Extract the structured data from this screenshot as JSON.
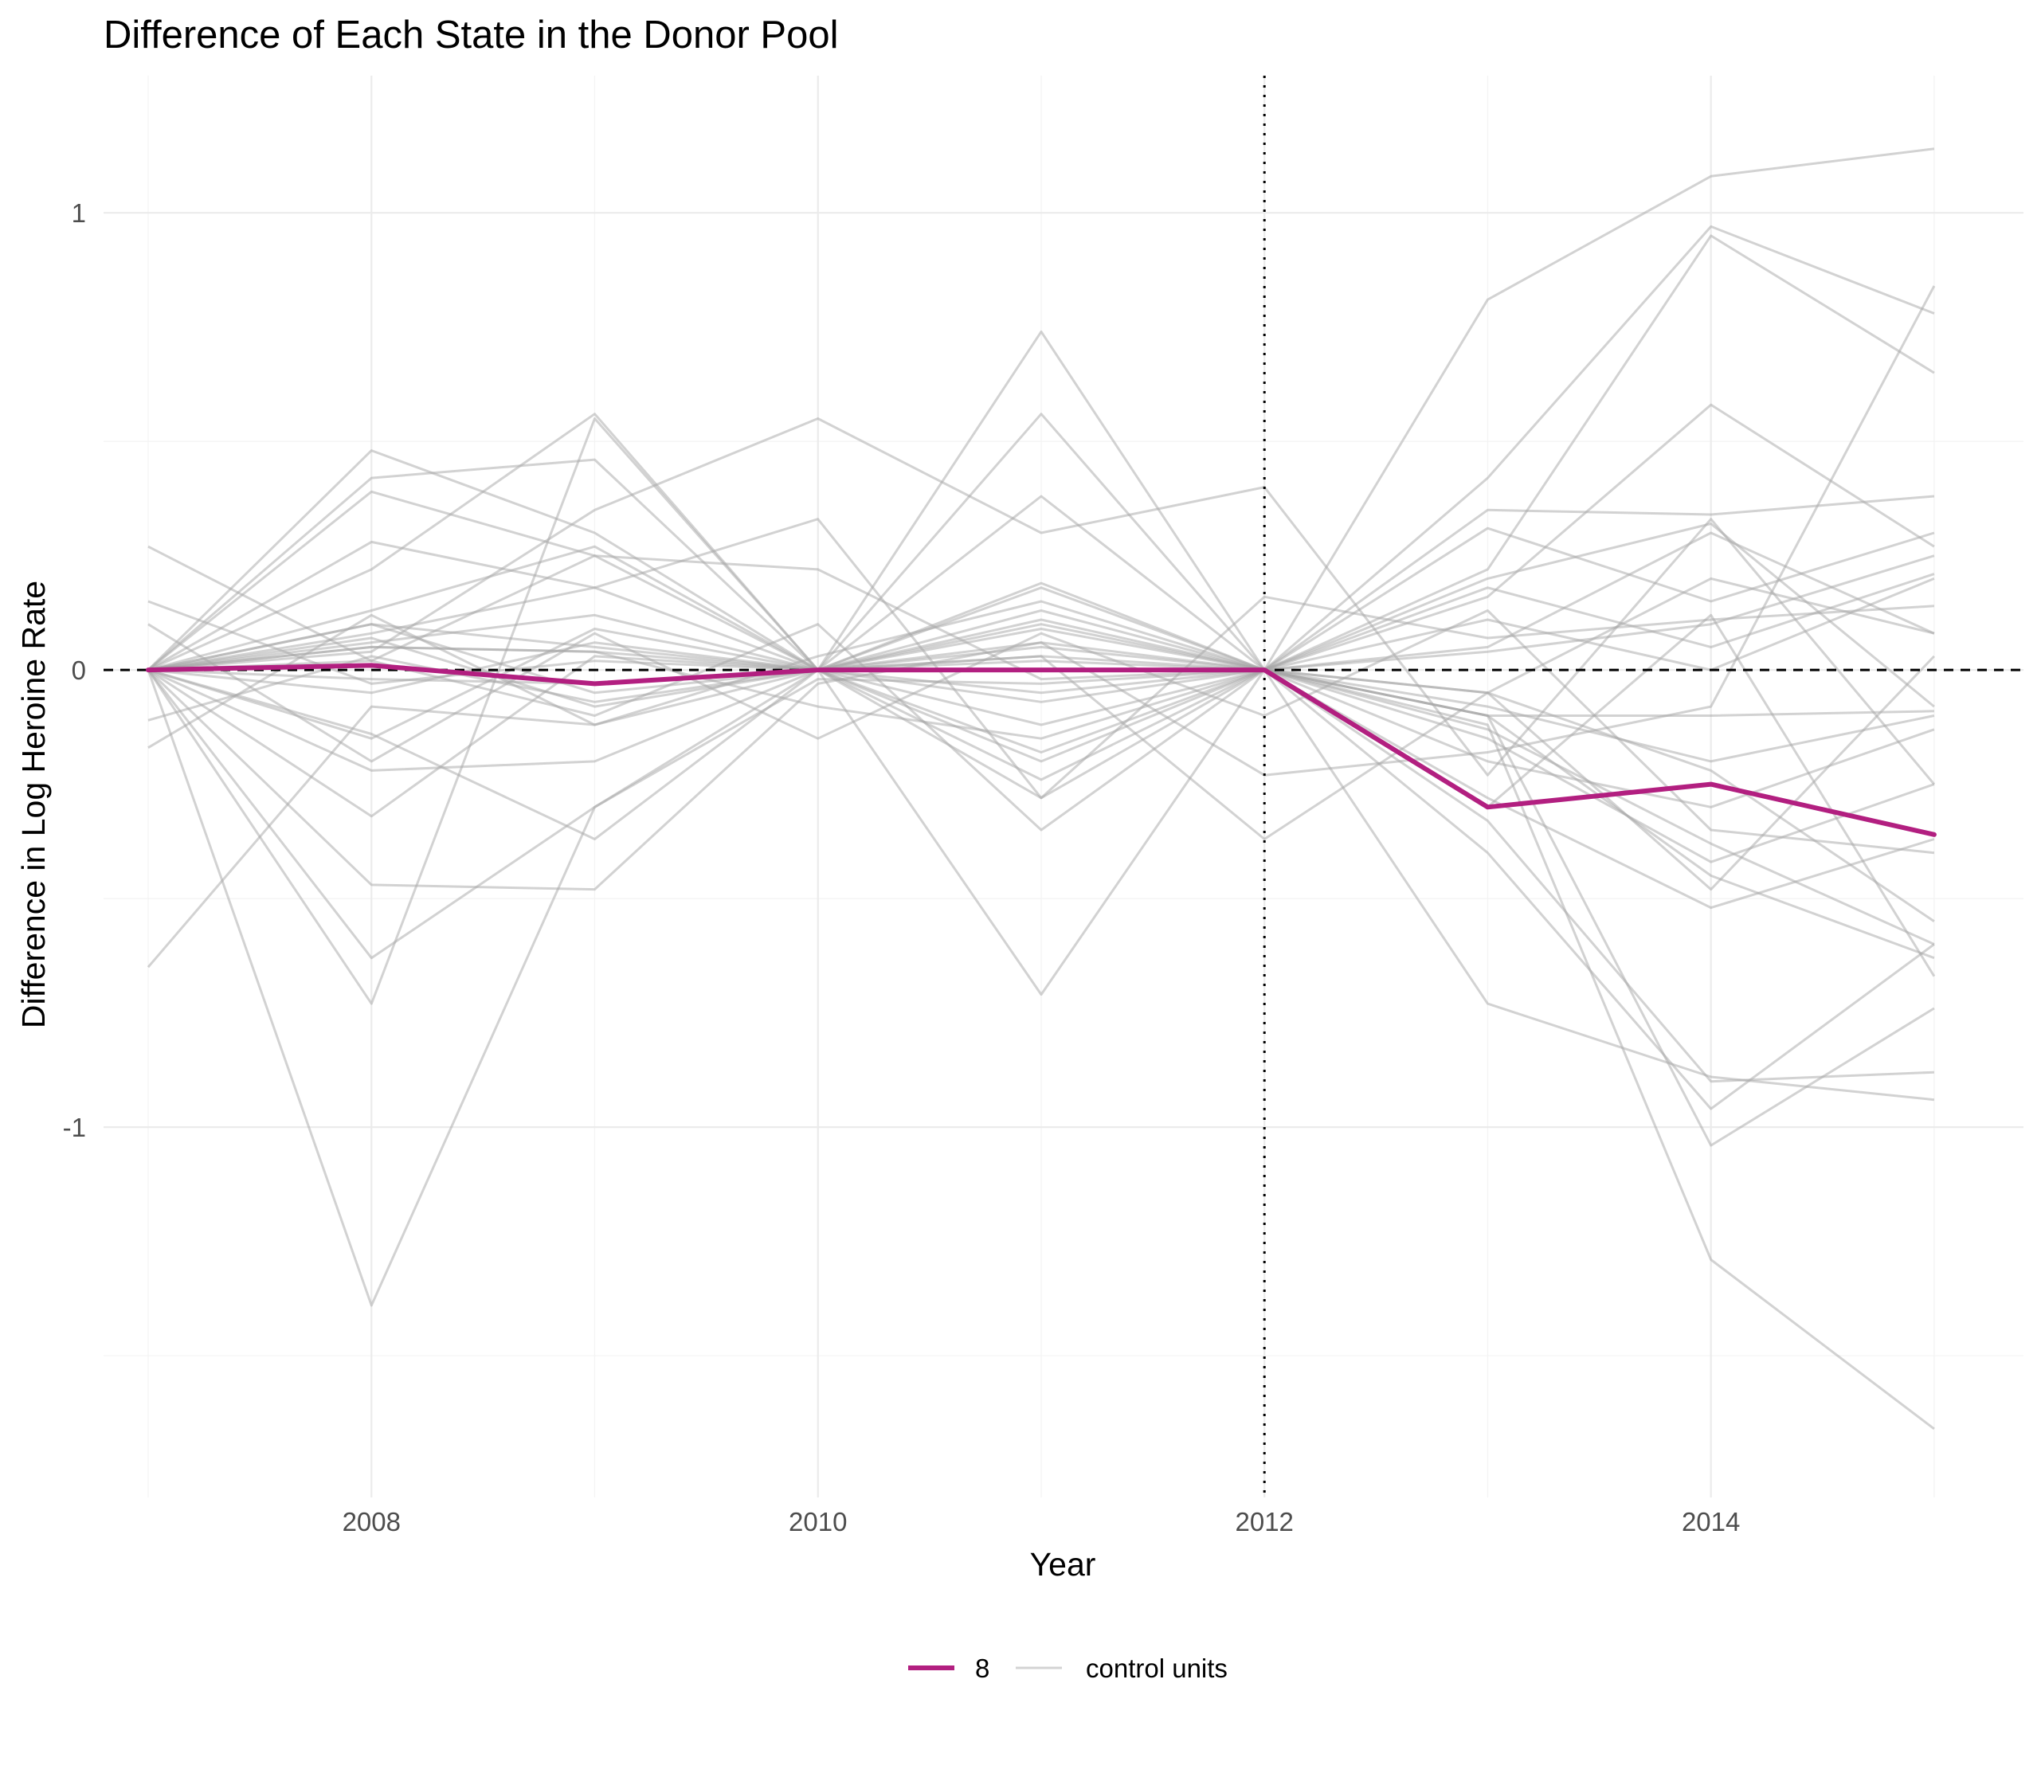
{
  "chart_data": {
    "type": "line",
    "title": "Difference of Each State in the Donor Pool",
    "xlabel": "Year",
    "ylabel": "Difference in Log Heroine Rate",
    "x": [
      2007,
      2008,
      2009,
      2010,
      2011,
      2012,
      2013,
      2014,
      2015
    ],
    "xlim": [
      2006.8,
      2015.4
    ],
    "ylim": [
      -1.81,
      1.3
    ],
    "x_ticks": [
      "2008",
      "2010",
      "2012",
      "2014"
    ],
    "x_tick_values": [
      2008,
      2010,
      2012,
      2014
    ],
    "y_ticks": [
      "-1",
      "0",
      "1"
    ],
    "y_tick_values": [
      -1,
      0,
      1
    ],
    "grid": true,
    "legend_position": "bottom",
    "reference_lines": {
      "horizontal_dashed_y": 0,
      "vertical_dotted_x": 2012
    },
    "colors": {
      "treated": "#B21F80",
      "control": "#A6A6A6",
      "reference": "#000000"
    },
    "legend": [
      {
        "label": "8",
        "color": "#B21F80"
      },
      {
        "label": "control units",
        "color": "#D3D3D3"
      }
    ],
    "series": [
      {
        "name": "8",
        "values": [
          0,
          0.01,
          -0.03,
          0,
          0,
          0,
          -0.3,
          -0.25,
          -0.36
        ]
      },
      {
        "name": "control units",
        "values": [
          0,
          0.05,
          0.04,
          0,
          0.03,
          0,
          0.81,
          1.08,
          1.14
        ]
      },
      {
        "name": "control units",
        "values": [
          0,
          0.48,
          0.3,
          0,
          -0.28,
          0,
          0.42,
          0.97,
          0.78
        ]
      },
      {
        "name": "control units",
        "values": [
          0,
          0.42,
          0.46,
          0,
          0.19,
          0,
          0.22,
          0.95,
          0.65
        ]
      },
      {
        "name": "control units",
        "values": [
          0,
          0.39,
          0.25,
          0,
          0.38,
          0,
          0.16,
          0.58,
          0.27
        ]
      },
      {
        "name": "control units",
        "values": [
          0,
          0.28,
          0.18,
          0,
          0.74,
          0,
          0.35,
          0.34,
          0.38
        ]
      },
      {
        "name": "control units",
        "values": [
          0,
          0.22,
          0.56,
          0,
          0.56,
          0,
          0.31,
          0.15,
          0.3
        ]
      },
      {
        "name": "control units",
        "values": [
          0,
          0.04,
          0.35,
          0.55,
          0.3,
          0.4,
          -0.23,
          0.33,
          -0.25
        ]
      },
      {
        "name": "control units",
        "values": [
          0,
          0.13,
          0.27,
          0,
          0.11,
          0,
          0.2,
          0.32,
          -0.08
        ]
      },
      {
        "name": "control units",
        "values": [
          0,
          0.08,
          0.18,
          0.33,
          -0.28,
          0.16,
          0.07,
          0.11,
          0.14
        ]
      },
      {
        "name": "control units",
        "values": [
          0,
          0.1,
          0.05,
          0,
          0.18,
          0,
          0.04,
          0.1,
          0.25
        ]
      },
      {
        "name": "control units",
        "values": [
          0,
          0.06,
          0.12,
          0,
          0.09,
          0,
          -0.05,
          0.2,
          0.08
        ]
      },
      {
        "name": "control units",
        "values": [
          0,
          -0.15,
          0.09,
          0,
          0.13,
          0,
          0.11,
          0,
          0.2
        ]
      },
      {
        "name": "control units",
        "values": [
          0,
          -0.05,
          0.06,
          0,
          0.05,
          0,
          -0.1,
          -0.1,
          -0.09
        ]
      },
      {
        "name": "control units",
        "values": [
          0,
          0.07,
          -0.08,
          0,
          -0.05,
          0,
          -0.15,
          -0.42,
          -0.25
        ]
      },
      {
        "name": "control units",
        "values": [
          0,
          -0.02,
          -0.03,
          0,
          -0.18,
          0,
          -0.2,
          -0.3,
          -0.13
        ]
      },
      {
        "name": "control units",
        "values": [
          0,
          0.05,
          0.04,
          -0.08,
          -0.15,
          0,
          -0.13,
          -0.38,
          -0.6
        ]
      },
      {
        "name": "control units",
        "values": [
          0,
          -0.22,
          -0.2,
          0,
          -0.24,
          0,
          -0.28,
          -0.52,
          -0.37
        ]
      },
      {
        "name": "control units",
        "values": [
          0,
          -0.32,
          0.03,
          0,
          0.1,
          0,
          -0.1,
          -0.45,
          -0.63
        ]
      },
      {
        "name": "control units",
        "values": [
          0,
          0.1,
          -0.05,
          0,
          0.02,
          0,
          -0.05,
          -0.22,
          -0.55
        ]
      },
      {
        "name": "control units",
        "values": [
          0,
          -0.14,
          -0.37,
          0,
          0.06,
          0,
          -0.33,
          -0.9,
          -0.88
        ]
      },
      {
        "name": "control units",
        "values": [
          0,
          0.02,
          -0.1,
          0.1,
          -0.35,
          0,
          -0.4,
          -0.96,
          -0.6
        ]
      },
      {
        "name": "control units",
        "values": [
          0,
          -0.63,
          -0.3,
          -0.02,
          -0.03,
          0,
          -0.1,
          -1.04,
          -0.74
        ]
      },
      {
        "name": "control units",
        "values": [
          0,
          -0.73,
          0.55,
          0,
          -0.07,
          0,
          -0.73,
          -0.89,
          -0.94
        ]
      },
      {
        "name": "control units",
        "values": [
          0,
          -0.47,
          -0.48,
          -0.03,
          0.06,
          -0.23,
          -0.18,
          -0.08,
          0.84
        ]
      },
      {
        "name": "control units",
        "values": [
          0,
          -1.39,
          -0.3,
          0,
          -0.71,
          0,
          -0.12,
          -1.29,
          -1.66
        ]
      },
      {
        "name": "control units",
        "values": [
          -0.65,
          -0.08,
          -0.12,
          0,
          0.03,
          -0.37,
          -0.05,
          -0.48,
          0.03
        ]
      },
      {
        "name": "control units",
        "values": [
          0.27,
          0.02,
          0.25,
          0.22,
          -0.02,
          0,
          -0.3,
          0.12,
          -0.67
        ]
      },
      {
        "name": "control units",
        "values": [
          0.15,
          -0.03,
          0.02,
          0,
          -0.12,
          0,
          0.05,
          0.3,
          0.08
        ]
      },
      {
        "name": "control units",
        "values": [
          -0.17,
          0.12,
          -0.12,
          0.03,
          0.15,
          0,
          -0.08,
          -0.2,
          -0.1
        ]
      },
      {
        "name": "control units",
        "values": [
          0.1,
          -0.2,
          0.08,
          -0.15,
          0.08,
          -0.1,
          0.13,
          -0.35,
          -0.4
        ]
      },
      {
        "name": "control units",
        "values": [
          -0.11,
          0.03,
          -0.07,
          0,
          -0.2,
          0,
          0.18,
          0.05,
          0.21
        ]
      }
    ]
  }
}
